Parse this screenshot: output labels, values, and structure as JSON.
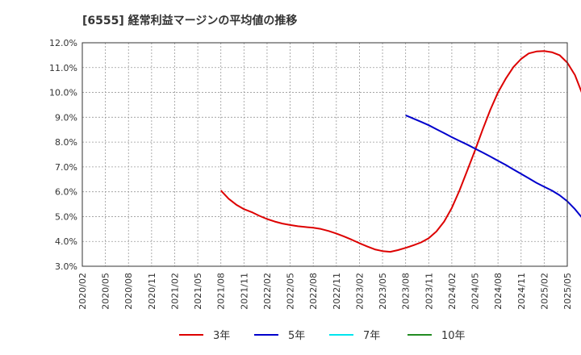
{
  "chart_data": {
    "type": "line",
    "title": "[6555]  経常利益マージンの平均値の推移",
    "xlabel": "",
    "ylabel": "",
    "x_ticks": [
      "2020/02",
      "2020/05",
      "2020/08",
      "2020/11",
      "2021/02",
      "2021/05",
      "2021/08",
      "2021/11",
      "2022/02",
      "2022/05",
      "2022/08",
      "2022/11",
      "2023/02",
      "2023/05",
      "2023/08",
      "2023/11",
      "2024/02",
      "2024/05",
      "2024/08",
      "2024/11",
      "2025/02",
      "2025/05"
    ],
    "y_ticks": [
      "3.0%",
      "4.0%",
      "5.0%",
      "6.0%",
      "7.0%",
      "8.0%",
      "9.0%",
      "10.0%",
      "11.0%",
      "12.0%"
    ],
    "ylim": [
      3.0,
      12.0
    ],
    "grid": true,
    "legend_position": "bottom",
    "series": [
      {
        "name": "3年",
        "color": "#dd0000",
        "points": [
          [
            "2021/08",
            6.05
          ],
          [
            "2021/09",
            5.72
          ],
          [
            "2021/10",
            5.48
          ],
          [
            "2021/11",
            5.3
          ],
          [
            "2021/12",
            5.18
          ],
          [
            "2022/01",
            5.03
          ],
          [
            "2022/02",
            4.9
          ],
          [
            "2022/03",
            4.8
          ],
          [
            "2022/04",
            4.72
          ],
          [
            "2022/05",
            4.66
          ],
          [
            "2022/06",
            4.61
          ],
          [
            "2022/07",
            4.58
          ],
          [
            "2022/08",
            4.55
          ],
          [
            "2022/09",
            4.5
          ],
          [
            "2022/10",
            4.42
          ],
          [
            "2022/11",
            4.32
          ],
          [
            "2022/12",
            4.2
          ],
          [
            "2023/01",
            4.07
          ],
          [
            "2023/02",
            3.93
          ],
          [
            "2023/03",
            3.8
          ],
          [
            "2023/04",
            3.68
          ],
          [
            "2023/05",
            3.61
          ],
          [
            "2023/06",
            3.58
          ],
          [
            "2023/07",
            3.65
          ],
          [
            "2023/08",
            3.74
          ],
          [
            "2023/09",
            3.84
          ],
          [
            "2023/10",
            3.96
          ],
          [
            "2023/11",
            4.13
          ],
          [
            "2023/12",
            4.4
          ],
          [
            "2024/01",
            4.8
          ],
          [
            "2024/02",
            5.35
          ],
          [
            "2024/03",
            6.05
          ],
          [
            "2024/04",
            6.85
          ],
          [
            "2024/05",
            7.65
          ],
          [
            "2024/06",
            8.5
          ],
          [
            "2024/07",
            9.3
          ],
          [
            "2024/08",
            10.0
          ],
          [
            "2024/09",
            10.55
          ],
          [
            "2024/10",
            11.02
          ],
          [
            "2024/11",
            11.35
          ],
          [
            "2024/12",
            11.57
          ],
          [
            "2025/01",
            11.65
          ],
          [
            "2025/02",
            11.67
          ],
          [
            "2025/03",
            11.62
          ],
          [
            "2025/04",
            11.5
          ],
          [
            "2025/05",
            11.2
          ],
          [
            "2025/06",
            10.7
          ],
          [
            "2025/07",
            9.9
          ]
        ]
      },
      {
        "name": "5年",
        "color": "#0000cc",
        "points": [
          [
            "2023/08",
            9.08
          ],
          [
            "2023/09",
            8.95
          ],
          [
            "2023/10",
            8.82
          ],
          [
            "2023/11",
            8.68
          ],
          [
            "2023/12",
            8.52
          ],
          [
            "2024/01",
            8.36
          ],
          [
            "2024/02",
            8.2
          ],
          [
            "2024/03",
            8.05
          ],
          [
            "2024/04",
            7.9
          ],
          [
            "2024/05",
            7.74
          ],
          [
            "2024/06",
            7.58
          ],
          [
            "2024/07",
            7.42
          ],
          [
            "2024/08",
            7.25
          ],
          [
            "2024/09",
            7.08
          ],
          [
            "2024/10",
            6.9
          ],
          [
            "2024/11",
            6.72
          ],
          [
            "2024/12",
            6.54
          ],
          [
            "2025/01",
            6.36
          ],
          [
            "2025/02",
            6.2
          ],
          [
            "2025/03",
            6.05
          ],
          [
            "2025/04",
            5.86
          ],
          [
            "2025/05",
            5.62
          ],
          [
            "2025/06",
            5.3
          ],
          [
            "2025/07",
            4.92
          ]
        ]
      },
      {
        "name": "7年",
        "color": "#00e5ee",
        "points": []
      },
      {
        "name": "10年",
        "color": "#228b22",
        "points": []
      }
    ]
  }
}
